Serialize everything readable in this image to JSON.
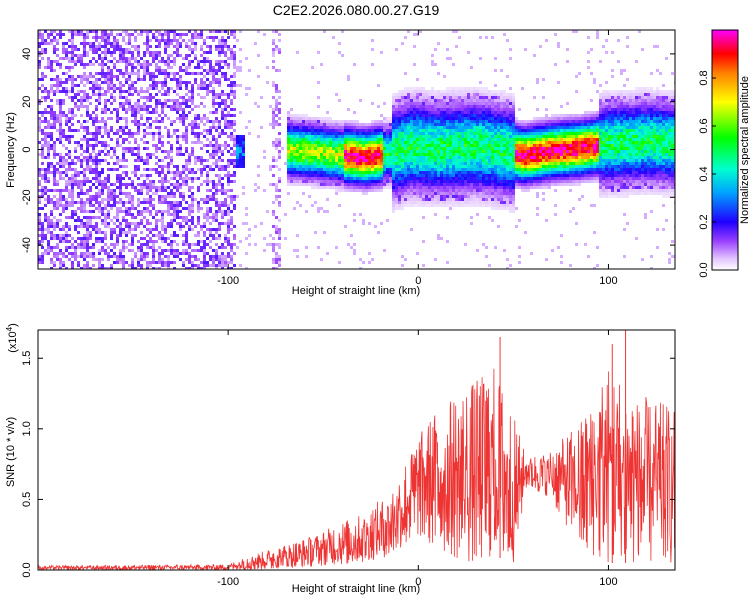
{
  "title": "C2E2.2026.080.00.27.G19",
  "chart_data": [
    {
      "type": "heatmap",
      "xlabel": "Height of straight line (km)",
      "ylabel": "Frequency (Hz)",
      "xlim": [
        -200,
        135
      ],
      "ylim": [
        -50,
        50
      ],
      "xticks": [
        -100,
        0,
        100
      ],
      "yticks": [
        -40,
        -20,
        0,
        20,
        40
      ],
      "colorbar": {
        "label": "Normalized spectral amplitude",
        "range": [
          0,
          1
        ],
        "ticks": [
          0.0,
          0.2,
          0.4,
          0.6,
          0.8
        ],
        "colors": [
          "#ffffff",
          "#c080ff",
          "#7a00ff",
          "#0000ff",
          "#00bfff",
          "#00ff80",
          "#00ff00",
          "#ffff00",
          "#ff8000",
          "#ff0000",
          "#ff00ff"
        ]
      },
      "ridge_frequency_profile": [
        {
          "x": -95,
          "y": 0
        },
        {
          "x": -80,
          "y": 1
        },
        {
          "x": -60,
          "y": 0
        },
        {
          "x": -40,
          "y": -2
        },
        {
          "x": -28,
          "y": -3
        },
        {
          "x": -15,
          "y": -1
        },
        {
          "x": -5,
          "y": 2
        },
        {
          "x": 10,
          "y": 1
        },
        {
          "x": 30,
          "y": 2
        },
        {
          "x": 45,
          "y": 0
        },
        {
          "x": 55,
          "y": -2
        },
        {
          "x": 70,
          "y": 0
        },
        {
          "x": 85,
          "y": 1
        },
        {
          "x": 100,
          "y": 3
        },
        {
          "x": 120,
          "y": 4
        },
        {
          "x": 135,
          "y": 3
        }
      ]
    },
    {
      "type": "line",
      "xlabel": "Height of straight line (km)",
      "ylabel": "SNR (10 * v/v)",
      "scale_label": "(x10",
      "scale_exponent": "4",
      "xlim": [
        -200,
        135
      ],
      "ylim": [
        0,
        1.7
      ],
      "xticks": [
        -100,
        0,
        100
      ],
      "yticks": [
        0.0,
        0.5,
        1.0,
        1.5
      ],
      "series": [
        {
          "color": "#ee3333",
          "envelope": [
            {
              "x": -200,
              "lo": 0.0,
              "hi": 0.03
            },
            {
              "x": -100,
              "lo": 0.0,
              "hi": 0.04
            },
            {
              "x": -90,
              "lo": 0.0,
              "hi": 0.1
            },
            {
              "x": -60,
              "lo": 0.02,
              "hi": 0.22
            },
            {
              "x": -30,
              "lo": 0.05,
              "hi": 0.4
            },
            {
              "x": -15,
              "lo": 0.1,
              "hi": 0.55
            },
            {
              "x": 0,
              "lo": 0.25,
              "hi": 0.95
            },
            {
              "x": 10,
              "lo": 0.15,
              "hi": 1.15
            },
            {
              "x": 25,
              "lo": 0.05,
              "hi": 1.3
            },
            {
              "x": 40,
              "lo": 0.1,
              "hi": 1.45
            },
            {
              "x": 50,
              "lo": 0.05,
              "hi": 1.1
            },
            {
              "x": 57,
              "lo": 0.6,
              "hi": 0.8
            },
            {
              "x": 70,
              "lo": 0.5,
              "hi": 0.85
            },
            {
              "x": 85,
              "lo": 0.15,
              "hi": 1.05
            },
            {
              "x": 100,
              "lo": 0.05,
              "hi": 1.45
            },
            {
              "x": 115,
              "lo": 0.05,
              "hi": 1.25
            },
            {
              "x": 135,
              "lo": 0.05,
              "hi": 1.15
            }
          ],
          "peaks": [
            {
              "x": 43,
              "y": 1.65
            },
            {
              "x": 102,
              "y": 1.6
            },
            {
              "x": 109,
              "y": 1.7
            }
          ]
        }
      ]
    }
  ]
}
